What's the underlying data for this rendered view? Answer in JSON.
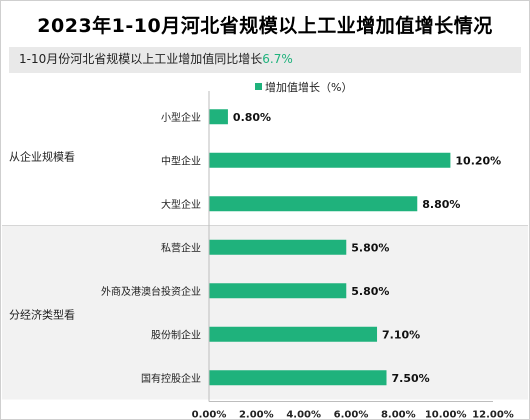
{
  "header": {
    "title": "2023年1-10月河北省规模以上工业增加值增长情况",
    "subtitle_prefix": "1-10月份河北省规模以上工业增加值同比增长",
    "subtitle_value": "6.7%"
  },
  "colors": {
    "bar": "#1fb27c",
    "band": "#f2f2f2",
    "subtitle_value": "#1fb27c"
  },
  "chart_data": {
    "type": "bar",
    "orientation": "horizontal",
    "legend": "增加值增长（%）",
    "legend_position": "top",
    "groups": [
      {
        "label": "从企业规模看",
        "categories": [
          "小型企业",
          "中型企业",
          "大型企业"
        ]
      },
      {
        "label": "分经济类型看",
        "categories": [
          "私营企业",
          "外商及港澳台投资企业",
          "股份制企业",
          "国有控股企业"
        ]
      }
    ],
    "categories": [
      "小型企业",
      "中型企业",
      "大型企业",
      "私营企业",
      "外商及港澳台投资企业",
      "股份制企业",
      "国有控股企业"
    ],
    "values": [
      0.8,
      10.2,
      8.8,
      5.8,
      5.8,
      7.1,
      7.5
    ],
    "value_labels": [
      "0.80%",
      "10.20%",
      "8.80%",
      "5.80%",
      "5.80%",
      "7.10%",
      "7.50%"
    ],
    "xlim": [
      0,
      12
    ],
    "xticks": [
      "0.00%",
      "2.00%",
      "4.00%",
      "6.00%",
      "8.00%",
      "10.00%",
      "12.00%"
    ],
    "grid": false
  }
}
